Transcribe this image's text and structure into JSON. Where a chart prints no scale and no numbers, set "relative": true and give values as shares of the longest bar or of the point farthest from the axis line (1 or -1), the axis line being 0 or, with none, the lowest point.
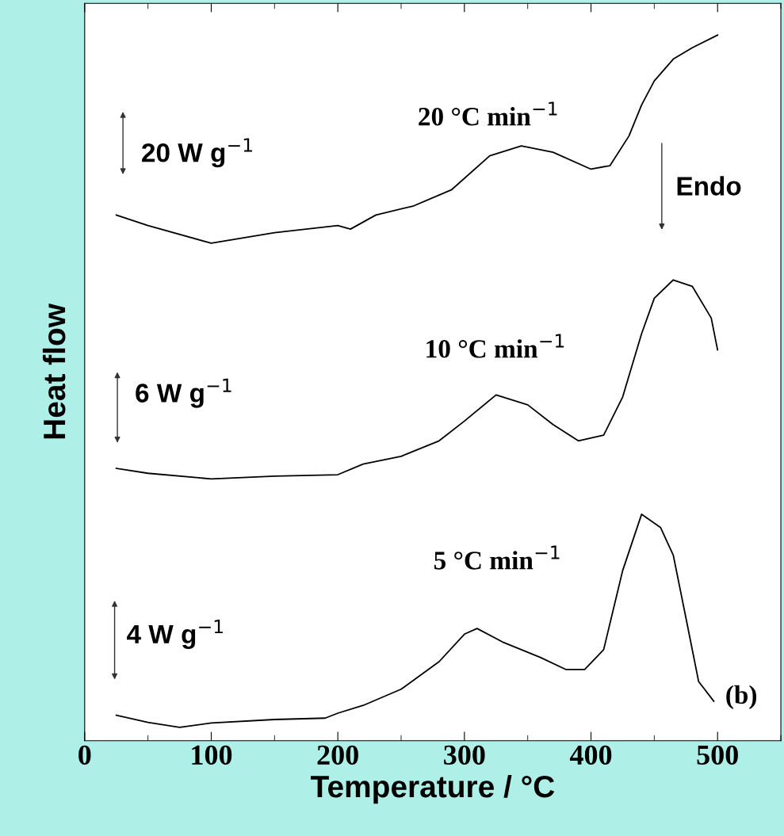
{
  "chart_data": {
    "type": "line",
    "relative": true,
    "xlabel": "Temperature / °C",
    "ylabel": "Heat flow",
    "xlim": [
      0,
      550
    ],
    "xticks": [
      0,
      100,
      200,
      300,
      400,
      500
    ],
    "tick_labels": "x",
    "grid": false,
    "legend": false,
    "marker": "none",
    "line_style": "solid",
    "series": [
      {
        "name": "20 °C min$^{−1}$",
        "color": "#000000",
        "x": [
          25,
          50,
          100,
          150,
          200,
          210,
          230,
          260,
          290,
          320,
          345,
          370,
          400,
          415,
          430,
          440,
          450,
          465,
          480,
          500
        ],
        "values": [
          0.745,
          0.73,
          0.705,
          0.72,
          0.73,
          0.725,
          0.745,
          0.758,
          0.781,
          0.829,
          0.843,
          0.834,
          0.81,
          0.815,
          0.857,
          0.901,
          0.935,
          0.966,
          0.982,
          1.0
        ]
      },
      {
        "name": "10 °C min$^{−1}$",
        "color": "#000000",
        "x": [
          25,
          50,
          100,
          150,
          200,
          220,
          250,
          280,
          300,
          325,
          350,
          370,
          390,
          410,
          425,
          440,
          450,
          465,
          480,
          495,
          500
        ],
        "values": [
          0.386,
          0.379,
          0.371,
          0.375,
          0.377,
          0.392,
          0.403,
          0.425,
          0.453,
          0.49,
          0.476,
          0.448,
          0.425,
          0.433,
          0.487,
          0.577,
          0.627,
          0.653,
          0.644,
          0.599,
          0.554
        ]
      },
      {
        "name": "5 °C min$^{−1}$",
        "color": "#000000",
        "x": [
          25,
          50,
          75,
          100,
          150,
          190,
          200,
          220,
          250,
          280,
          300,
          310,
          330,
          360,
          380,
          395,
          410,
          425,
          440,
          455,
          465,
          475,
          485,
          497
        ],
        "values": [
          0.036,
          0.026,
          0.019,
          0.025,
          0.03,
          0.032,
          0.039,
          0.05,
          0.073,
          0.112,
          0.151,
          0.159,
          0.14,
          0.118,
          0.101,
          0.101,
          0.129,
          0.241,
          0.321,
          0.302,
          0.263,
          0.174,
          0.084,
          0.056
        ]
      }
    ],
    "annotations": [
      "20 W g$^{−1}$",
      "6 W g$^{−1}$",
      "4 W g$^{−1}$",
      "Endo",
      "(b)"
    ]
  }
}
